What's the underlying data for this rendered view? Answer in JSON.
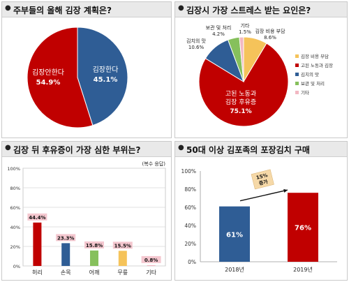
{
  "panels": {
    "p1": {
      "title": "주부들의 올해 김장 계획은?",
      "chart_data": {
        "type": "pie",
        "slices": [
          {
            "name": "김장한다",
            "value": 45.1,
            "label": "45.1%",
            "color": "#2f5d95"
          },
          {
            "name": "김장안한다",
            "value": 54.9,
            "label": "54.9%",
            "color": "#c00000"
          }
        ]
      }
    },
    "p2": {
      "title": "김장시 가장 스트레스 받는 요인은?",
      "chart_data": {
        "type": "pie",
        "legend": "right",
        "slices": [
          {
            "name": "김장 비용 부담",
            "value": 8.6,
            "label": "8.6%",
            "color": "#f5c35a"
          },
          {
            "name": "고된 노동과 김장 후유증",
            "value": 75.1,
            "label": "75.1%",
            "color": "#c00000"
          },
          {
            "name": "김치의 맛",
            "value": 10.6,
            "label": "10.6%",
            "color": "#2f5d95"
          },
          {
            "name": "보관 및 처리",
            "value": 4.2,
            "label": "4.2%",
            "color": "#86c05c"
          },
          {
            "name": "기타",
            "value": 1.5,
            "label": "1.5%",
            "color": "#f2b8c2"
          }
        ],
        "legend_entries": [
          "김장 비용 부담",
          "고된 노동과 김장",
          "김치의 맛",
          "보관 및 처리",
          "기타"
        ]
      }
    },
    "p3": {
      "title": "김장 뒤 후유증이 가장 심한 부위는?",
      "note": "(복수 응답)",
      "chart_data": {
        "type": "bar",
        "categories": [
          "허리",
          "손목",
          "어깨",
          "무릎",
          "기타"
        ],
        "values": [
          44.4,
          23.3,
          15.8,
          15.5,
          0.8
        ],
        "labels": [
          "44.4%",
          "23.3%",
          "15.8%",
          "15.5%",
          "0.8%"
        ],
        "colors": [
          "#c00000",
          "#2f5d95",
          "#86c05c",
          "#f5c35a",
          "#f2b8c2"
        ],
        "ylim": [
          0,
          100
        ],
        "yticks": [
          "0%",
          "20%",
          "40%",
          "60%",
          "80%",
          "100%"
        ],
        "grid": true
      }
    },
    "p4": {
      "title": "50대 이상 김포족의 포장김치 구매",
      "chart_data": {
        "type": "bar",
        "categories": [
          "2018년",
          "2019년"
        ],
        "values": [
          61,
          76
        ],
        "labels": [
          "61%",
          "76%"
        ],
        "colors": [
          "#2f5d95",
          "#c00000"
        ],
        "ylim": [
          0,
          100
        ],
        "yticks": [
          "0%",
          "20%",
          "40%",
          "60%",
          "80%",
          "100%"
        ],
        "annotation": {
          "line1": "15%",
          "line2": "증가"
        }
      }
    }
  }
}
